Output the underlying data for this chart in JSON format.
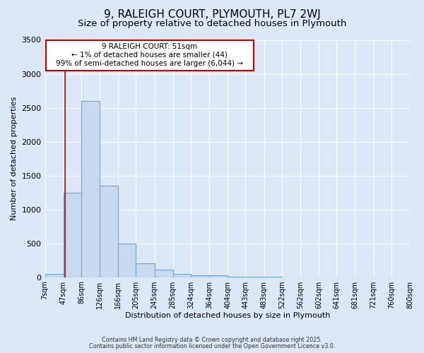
{
  "title": "9, RALEIGH COURT, PLYMOUTH, PL7 2WJ",
  "subtitle": "Size of property relative to detached houses in Plymouth",
  "xlabel": "Distribution of detached houses by size in Plymouth",
  "ylabel": "Number of detached properties",
  "footnote1": "Contains HM Land Registry data © Crown copyright and database right 2025.",
  "footnote2": "Contains public sector information licensed under the Open Government Licence v3.0.",
  "bar_edges": [
    7,
    47,
    86,
    126,
    166,
    205,
    245,
    285,
    324,
    364,
    404,
    443,
    483,
    522,
    562,
    602,
    641,
    681,
    721,
    760,
    800
  ],
  "bar_heights": [
    50,
    1250,
    2600,
    1350,
    500,
    200,
    110,
    50,
    30,
    30,
    5,
    5,
    3,
    0,
    0,
    0,
    0,
    0,
    0,
    0
  ],
  "bar_color": "#c8d9ef",
  "bar_edgecolor": "#6aaad4",
  "bar_linewidth": 0.8,
  "bg_color": "#dce8f5",
  "plot_bg_color": "#dce8f5",
  "grid_color": "#ffffff",
  "red_line_x": 51,
  "ylim": [
    0,
    3500
  ],
  "yticks": [
    0,
    500,
    1000,
    1500,
    2000,
    2500,
    3000,
    3500
  ],
  "annotation_title": "9 RALEIGH COURT: 51sqm",
  "annotation_line1": "← 1% of detached houses are smaller (44)",
  "annotation_line2": "99% of semi-detached houses are larger (6,044) →",
  "annotation_box_color": "#ffffff",
  "annotation_box_edgecolor": "#cc0000",
  "title_fontsize": 11,
  "subtitle_fontsize": 9.5,
  "tick_labelsize": 7,
  "ylabel_fontsize": 8,
  "xlabel_fontsize": 8,
  "annot_fontsize": 7.5
}
